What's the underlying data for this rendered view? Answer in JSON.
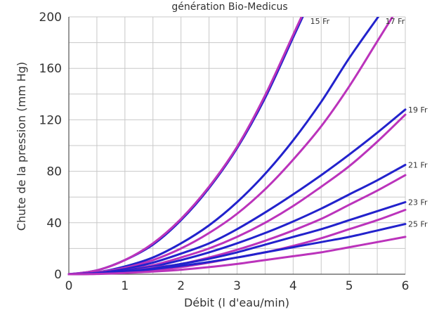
{
  "chart_data": {
    "type": "line",
    "title": "génération Bio-Medicus",
    "xlabel": "Débit (l d'eau/min)",
    "ylabel": "Chute de la pression (mm Hg)",
    "xlim": [
      0,
      6
    ],
    "ylim": [
      0,
      200
    ],
    "xticks": [
      0,
      1,
      2,
      3,
      4,
      5,
      6
    ],
    "yticks": [
      0,
      40,
      80,
      120,
      160,
      200
    ],
    "grid": true,
    "legend": "none",
    "colors": {
      "blue": "#2222cc",
      "magenta": "#bb33bb"
    },
    "curve_labels": [
      "15 Fr",
      "17 Fr",
      "19 Fr",
      "21 Fr",
      "23 Fr",
      "25 Fr"
    ],
    "x": [
      0,
      0.5,
      1,
      1.5,
      2,
      2.5,
      3,
      3.5,
      4,
      4.5,
      5,
      5.5,
      6
    ],
    "series": [
      {
        "label": "15 Fr",
        "color": "blue",
        "values": [
          0,
          3,
          11,
          23,
          42,
          67,
          98,
          137,
          184,
          null,
          null,
          null,
          null
        ]
      },
      {
        "label": "15 Fr",
        "color": "magenta",
        "values": [
          0,
          3,
          11,
          24,
          43,
          68,
          99,
          139,
          186,
          null,
          null,
          null,
          null
        ]
      },
      {
        "label": "17 Fr",
        "color": "blue",
        "values": [
          0,
          1.5,
          6,
          13,
          24,
          38,
          56,
          78,
          104,
          134,
          168,
          199,
          null
        ]
      },
      {
        "label": "17 Fr",
        "color": "magenta",
        "values": [
          0,
          1.5,
          5,
          11,
          20,
          32,
          47,
          66,
          89,
          115,
          146,
          181,
          null
        ]
      },
      {
        "label": "19 Fr",
        "color": "blue",
        "values": [
          0,
          1,
          4,
          9,
          16,
          24,
          35,
          48,
          62,
          77,
          93,
          110,
          128
        ]
      },
      {
        "label": "19 Fr",
        "color": "magenta",
        "values": [
          0,
          1,
          3,
          7,
          13,
          20,
          29,
          40,
          53,
          68,
          84,
          103,
          124
        ]
      },
      {
        "label": "21 Fr",
        "color": "blue",
        "values": [
          0,
          1,
          3,
          6,
          11,
          17,
          24,
          32,
          41,
          51,
          62,
          73,
          85
        ]
      },
      {
        "label": "21 Fr",
        "color": "magenta",
        "values": [
          0,
          0.5,
          2,
          5,
          8,
          13,
          19,
          26,
          34,
          43,
          54,
          65,
          77
        ]
      },
      {
        "label": "23 Fr",
        "color": "blue",
        "values": [
          0,
          0.5,
          2,
          4.5,
          8,
          12,
          17,
          23,
          29,
          35,
          42,
          49,
          56
        ]
      },
      {
        "label": "23 Fr",
        "color": "magenta",
        "values": [
          0,
          0.3,
          1.5,
          3,
          5.5,
          9,
          13,
          17,
          22,
          28,
          35,
          42,
          50
        ]
      },
      {
        "label": "25 Fr",
        "color": "blue",
        "values": [
          0,
          0.5,
          2,
          4,
          6.5,
          9.5,
          13,
          17,
          21,
          25,
          29,
          34,
          39
        ]
      },
      {
        "label": "25 Fr",
        "color": "magenta",
        "values": [
          0,
          0.2,
          1,
          2,
          3.5,
          5.5,
          8,
          11,
          14,
          17,
          21,
          25,
          29
        ]
      }
    ]
  }
}
